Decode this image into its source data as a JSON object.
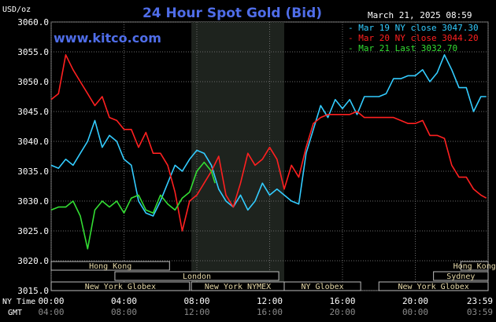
{
  "chart_data": {
    "type": "line",
    "title": "24 Hour Spot Gold (Bid)",
    "timestamp": "March 21, 2025 08:59",
    "site": "www.kitco.com",
    "ylabel": "USD/oz",
    "xlabel_primary": "NY Time",
    "xlabel_secondary": "GMT",
    "ylim": [
      3015.0,
      3060.0
    ],
    "xlim": [
      0,
      24
    ],
    "yticks": [
      "3060.0",
      "3055.0",
      "3050.0",
      "3045.0",
      "3040.0",
      "3035.0",
      "3030.0",
      "3025.0",
      "3020.0",
      "3015.0"
    ],
    "ytick_values": [
      3060,
      3055,
      3050,
      3045,
      3040,
      3035,
      3030,
      3025,
      3020,
      3015
    ],
    "xticks_ny": [
      "00:00",
      "04:00",
      "08:00",
      "12:00",
      "16:00",
      "20:00",
      "23:59"
    ],
    "xticks_gmt": [
      "04:00",
      "08:00",
      "12:00",
      "16:00",
      "20:00",
      "00:00",
      "03:59"
    ],
    "xtick_hours": [
      0,
      4,
      8,
      12,
      16,
      20,
      24
    ],
    "grid": true,
    "highlight_band_hours": [
      7.7,
      12.8
    ],
    "legend_placement": "top-right",
    "series": [
      {
        "name": "Mar 19 NY close 3047.30",
        "color": "#33ccff",
        "x": [
          0,
          0.4,
          0.8,
          1.2,
          1.6,
          2.0,
          2.4,
          2.8,
          3.2,
          3.6,
          4.0,
          4.4,
          4.8,
          5.2,
          5.6,
          6.0,
          6.4,
          6.8,
          7.2,
          7.6,
          8.0,
          8.4,
          8.8,
          9.2,
          9.6,
          10.0,
          10.4,
          10.8,
          11.2,
          11.6,
          12.0,
          12.4,
          12.8,
          13.2,
          13.6,
          14.0,
          14.4,
          14.8,
          15.2,
          15.6,
          16.0,
          16.4,
          16.8,
          17.2,
          17.6,
          18.0,
          18.4,
          18.8,
          19.2,
          19.6,
          20.0,
          20.4,
          20.8,
          21.2,
          21.6,
          22.0,
          22.4,
          22.8,
          23.2,
          23.6,
          23.9
        ],
        "values": [
          3036.0,
          3035.5,
          3037.0,
          3036.0,
          3038.0,
          3040.0,
          3043.5,
          3039.0,
          3041.0,
          3040.0,
          3037.0,
          3036.0,
          3030.0,
          3028.0,
          3027.5,
          3030.0,
          3033.0,
          3036.0,
          3035.0,
          3037.0,
          3038.5,
          3038.0,
          3036.0,
          3032.0,
          3030.0,
          3029.0,
          3031.0,
          3028.5,
          3030.0,
          3033.0,
          3031.0,
          3032.0,
          3031.0,
          3030.0,
          3029.5,
          3038.0,
          3042.0,
          3046.0,
          3044.0,
          3047.0,
          3045.5,
          3047.0,
          3044.5,
          3047.5,
          3047.5,
          3047.5,
          3048.0,
          3050.5,
          3050.5,
          3051.0,
          3051.0,
          3052.0,
          3050.0,
          3051.5,
          3054.5,
          3052.0,
          3049.0,
          3049.0,
          3045.0,
          3047.5,
          3047.5
        ]
      },
      {
        "name": "Mar 20 NY close 3044.20",
        "color": "#ff2020",
        "x": [
          0,
          0.4,
          0.8,
          1.2,
          1.6,
          2.0,
          2.4,
          2.8,
          3.2,
          3.6,
          4.0,
          4.4,
          4.8,
          5.2,
          5.6,
          6.0,
          6.4,
          6.8,
          7.2,
          7.6,
          8.0,
          8.4,
          8.8,
          9.2,
          9.6,
          10.0,
          10.4,
          10.8,
          11.2,
          11.6,
          12.0,
          12.4,
          12.8,
          13.2,
          13.6,
          14.0,
          14.4,
          14.8,
          15.2,
          15.6,
          16.0,
          16.4,
          16.8,
          17.2,
          17.6,
          18.0,
          18.4,
          18.8,
          19.2,
          19.6,
          20.0,
          20.4,
          20.8,
          21.2,
          21.6,
          22.0,
          22.4,
          22.8,
          23.2,
          23.6,
          23.9
        ],
        "values": [
          3047.0,
          3048.0,
          3054.5,
          3052.0,
          3050.0,
          3048.0,
          3046.0,
          3047.5,
          3044.0,
          3043.5,
          3042.0,
          3042.0,
          3039.0,
          3041.5,
          3038.0,
          3038.0,
          3036.0,
          3031.5,
          3025.0,
          3030.0,
          3031.0,
          3033.0,
          3035.0,
          3037.5,
          3031.0,
          3029.0,
          3033.0,
          3038.0,
          3036.0,
          3037.0,
          3039.0,
          3037.0,
          3032.0,
          3036.0,
          3034.0,
          3039.0,
          3043.0,
          3044.0,
          3044.5,
          3044.5,
          3044.5,
          3044.5,
          3045.0,
          3044.0,
          3044.0,
          3044.0,
          3044.0,
          3044.0,
          3043.5,
          3043.0,
          3043.0,
          3043.5,
          3041.0,
          3041.0,
          3040.5,
          3036.0,
          3034.0,
          3034.0,
          3032.0,
          3031.0,
          3030.5
        ]
      },
      {
        "name": "Mar 21 Last 3032.70",
        "color": "#33dd33",
        "x": [
          0,
          0.4,
          0.8,
          1.2,
          1.6,
          2.0,
          2.4,
          2.8,
          3.2,
          3.6,
          4.0,
          4.4,
          4.8,
          5.2,
          5.6,
          6.0,
          6.4,
          6.8,
          7.2,
          7.6,
          8.0,
          8.4,
          8.8,
          9.0
        ],
        "values": [
          3028.5,
          3029.0,
          3029.0,
          3030.0,
          3027.5,
          3022.0,
          3028.5,
          3030.0,
          3029.0,
          3030.0,
          3028.0,
          3030.5,
          3031.0,
          3028.5,
          3028.0,
          3031.0,
          3029.5,
          3028.5,
          3030.5,
          3031.5,
          3035.0,
          3036.5,
          3035.0,
          3033.0
        ]
      }
    ],
    "session_rows": [
      [
        {
          "label": "Hong Kong",
          "start": 0,
          "end": 6.5
        },
        {
          "label": "Hong Kong",
          "start": 22.5,
          "end": 24
        }
      ],
      [
        {
          "label": "London",
          "start": 3.5,
          "end": 12.5
        },
        {
          "label": "Sydney",
          "start": 21.0,
          "end": 24
        }
      ],
      [
        {
          "label": "New York Globex",
          "start": 0,
          "end": 7.6
        },
        {
          "label": "New York NYMEX",
          "start": 7.7,
          "end": 12.8
        },
        {
          "label": "NY Globex",
          "start": 12.8,
          "end": 17.0
        },
        {
          "label": "New York Globex",
          "start": 18.0,
          "end": 24
        }
      ]
    ]
  }
}
